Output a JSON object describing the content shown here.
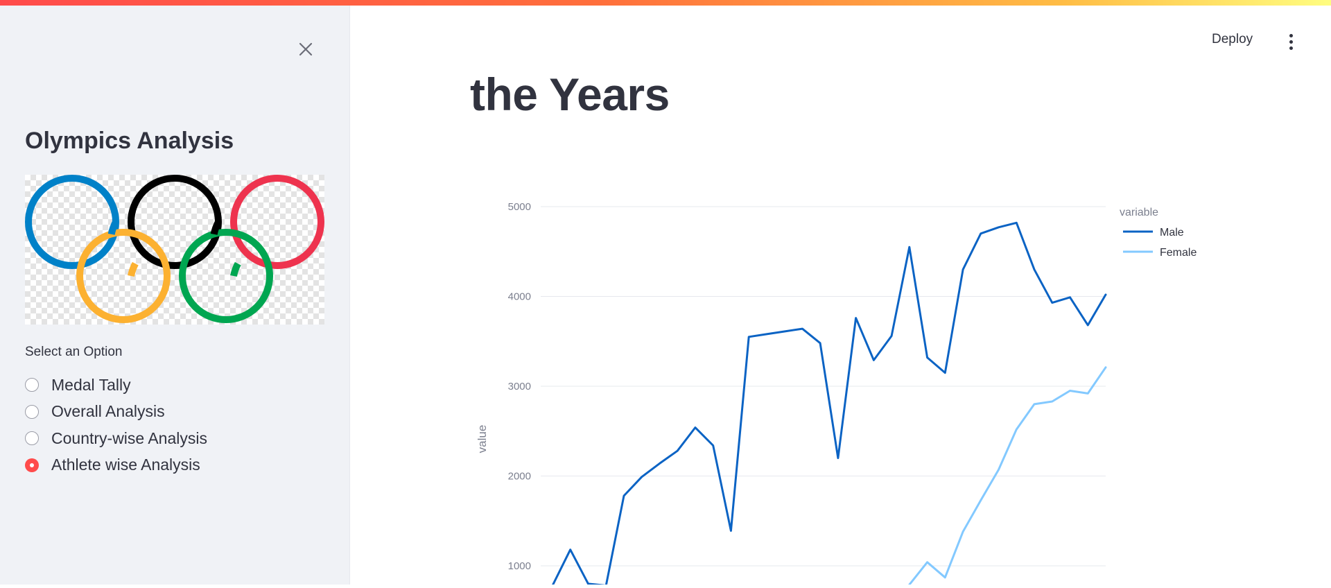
{
  "app": {
    "sidebar": {
      "title": "Olympics Analysis",
      "close_icon": "close-icon",
      "logo": {
        "icon": "olympic-rings-logo",
        "ring_colors": [
          "#0081c8",
          "#fcb131",
          "#000000",
          "#00a651",
          "#ee334e"
        ]
      },
      "radio_group": {
        "label": "Select an Option",
        "options": [
          "Medal Tally",
          "Overall Analysis",
          "Country-wise Analysis",
          "Athlete wise Analysis"
        ],
        "selected": "Athlete wise Analysis"
      }
    },
    "header": {
      "deploy_label": "Deploy",
      "menu_icon": "more-vertical-icon"
    },
    "main": {
      "heading": "the Years"
    },
    "colors": {
      "accent": "#ff4b4b",
      "sidebar_bg": "#f0f2f6",
      "male_line": "#0b63c4",
      "female_line": "#83c9ff"
    }
  },
  "chart_data": {
    "type": "line",
    "title": "",
    "xlabel": "",
    "ylabel": "value",
    "ylim": [
      700,
      5300
    ],
    "yticks": [
      "5000",
      "4000",
      "3000",
      "2000",
      "1000"
    ],
    "legend_title": "variable",
    "legend_position": "right",
    "grid": true,
    "series": [
      {
        "name": "Male",
        "color": "#0b63c4",
        "values": [
          780,
          1180,
          800,
          780,
          1780,
          1990,
          2140,
          2280,
          2540,
          2340,
          1390,
          3550,
          3580,
          3610,
          3640,
          3480,
          2200,
          3760,
          3290,
          3560,
          4550,
          3320,
          3150,
          4300,
          4700,
          4770,
          4820,
          4300,
          3930,
          3990,
          3680,
          4020
        ]
      },
      {
        "name": "Female",
        "color": "#83c9ff",
        "values": [
          null,
          null,
          null,
          null,
          null,
          null,
          null,
          null,
          null,
          null,
          null,
          null,
          null,
          null,
          null,
          null,
          null,
          null,
          null,
          null,
          790,
          1040,
          870,
          1380,
          1730,
          2070,
          2520,
          2800,
          2830,
          2950,
          2920,
          3210
        ]
      }
    ]
  }
}
